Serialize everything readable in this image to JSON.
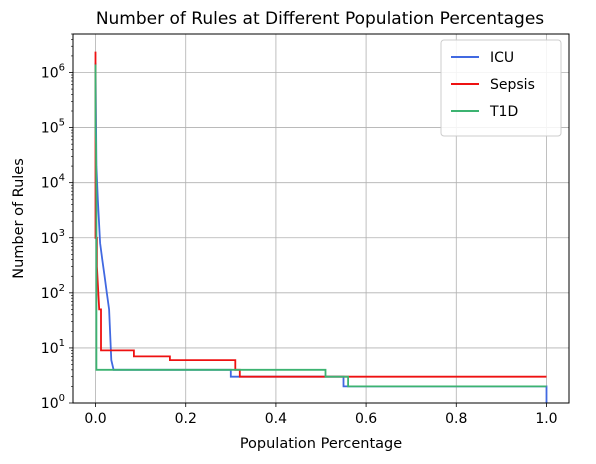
{
  "chart_data": {
    "type": "line",
    "title": "Number of Rules at Different Population Percentages",
    "xlabel": "Population Percentage",
    "ylabel": "Number of Rules",
    "xlim": [
      -0.05,
      1.05
    ],
    "ylim": [
      1,
      5000000
    ],
    "yscale": "log",
    "grid": true,
    "legend_position": "top-right",
    "x_ticks": [
      0.0,
      0.2,
      0.4,
      0.6,
      0.8,
      1.0
    ],
    "x_tick_labels": [
      "0.0",
      "0.2",
      "0.4",
      "0.6",
      "0.8",
      "1.0"
    ],
    "y_ticks": [
      1,
      10,
      100,
      1000,
      10000,
      100000,
      1000000
    ],
    "y_tick_labels": [
      {
        "base": "10",
        "exp": "0"
      },
      {
        "base": "10",
        "exp": "1"
      },
      {
        "base": "10",
        "exp": "2"
      },
      {
        "base": "10",
        "exp": "3"
      },
      {
        "base": "10",
        "exp": "4"
      },
      {
        "base": "10",
        "exp": "5"
      },
      {
        "base": "10",
        "exp": "6"
      }
    ],
    "series": [
      {
        "name": "ICU",
        "color": "#4169e1",
        "points": [
          [
            0.0,
            1500000
          ],
          [
            0.002,
            20000
          ],
          [
            0.005,
            5000
          ],
          [
            0.01,
            800
          ],
          [
            0.015,
            400
          ],
          [
            0.02,
            200
          ],
          [
            0.025,
            100
          ],
          [
            0.03,
            50
          ],
          [
            0.035,
            6
          ],
          [
            0.04,
            4
          ],
          [
            0.3,
            4
          ],
          [
            0.3,
            3
          ],
          [
            0.55,
            3
          ],
          [
            0.55,
            2
          ],
          [
            1.0,
            2
          ],
          [
            1.0,
            1
          ]
        ]
      },
      {
        "name": "Sepsis",
        "color": "#ee1111",
        "points": [
          [
            0.0,
            2400000
          ],
          [
            0.0,
            1000
          ],
          [
            0.003,
            1000
          ],
          [
            0.003,
            300
          ],
          [
            0.008,
            50
          ],
          [
            0.012,
            50
          ],
          [
            0.012,
            9
          ],
          [
            0.085,
            9
          ],
          [
            0.085,
            7
          ],
          [
            0.165,
            7
          ],
          [
            0.165,
            6
          ],
          [
            0.31,
            6
          ],
          [
            0.31,
            4
          ],
          [
            0.32,
            4
          ],
          [
            0.32,
            3
          ],
          [
            1.0,
            3
          ]
        ]
      },
      {
        "name": "T1D",
        "color": "#3cb371",
        "points": [
          [
            0.0,
            1400000
          ],
          [
            0.0,
            100000
          ],
          [
            0.001,
            50000
          ],
          [
            0.002,
            5000
          ],
          [
            0.002,
            4
          ],
          [
            0.51,
            4
          ],
          [
            0.51,
            3
          ],
          [
            0.56,
            3
          ],
          [
            0.56,
            2
          ],
          [
            1.0,
            2
          ]
        ]
      }
    ]
  }
}
